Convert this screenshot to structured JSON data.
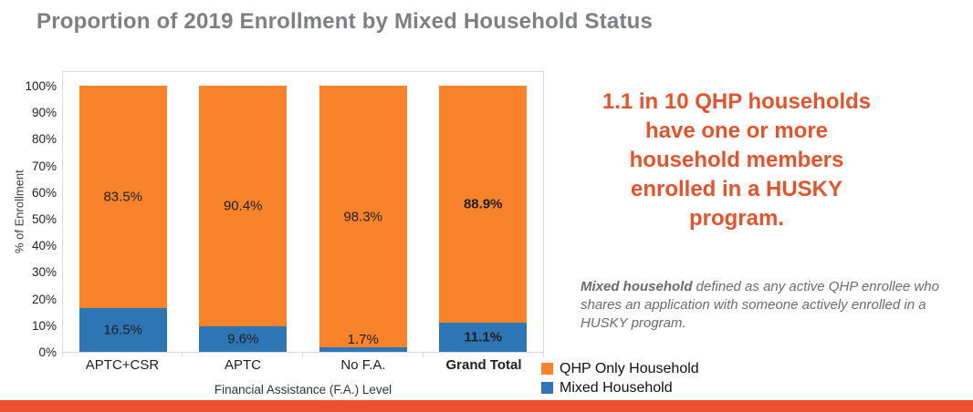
{
  "title": "Proportion of 2019 Enrollment by Mixed Household Status",
  "chart_data": {
    "type": "bar",
    "stacked": true,
    "title": "Proportion of 2019 Enrollment by Mixed Household Status",
    "categories": [
      "APTC+CSR",
      "APTC",
      "No F.A.",
      "Grand Total"
    ],
    "series": [
      {
        "name": "QHP Only Household",
        "color": "#f8832b",
        "values": [
          83.5,
          90.4,
          98.3,
          88.9
        ]
      },
      {
        "name": "Mixed Household",
        "color": "#2e75b6",
        "values": [
          16.5,
          9.6,
          1.7,
          11.1
        ]
      }
    ],
    "data_labels": {
      "QHP Only Household": [
        "83.5%",
        "90.4%",
        "98.3%",
        "88.9%"
      ],
      "Mixed Household": [
        "16.5%",
        "9.6%",
        "1.7%",
        "11.1%"
      ]
    },
    "emphasized_category": "Grand Total",
    "xlabel": "Financial Assistance (F.A.) Level",
    "ylabel": "% of Enrollment",
    "ylim": [
      0,
      100
    ],
    "yticks": [
      "100%",
      "90%",
      "80%",
      "70%",
      "60%",
      "50%",
      "40%",
      "30%",
      "20%",
      "10%",
      "0%"
    ],
    "grid": false,
    "legend_position": "bottom-right"
  },
  "legend": [
    {
      "label": "QHP Only Household",
      "color": "#f8832b"
    },
    {
      "label": "Mixed Household",
      "color": "#2e75b6"
    }
  ],
  "callout": {
    "headline": "1.1 in 10 QHP households\nhave one or more\nhousehold members\nenrolled in a HUSKY\nprogram."
  },
  "note": {
    "bold_lead": "Mixed household",
    "text": " defined as any active QHP enrollee who shares an application with someone actively enrolled in a HUSKY program."
  },
  "colors": {
    "title_gray": "#7e7f82",
    "qhp_orange": "#f8832b",
    "mixed_blue": "#2e75b6",
    "callout_orange": "#e0552d",
    "bottom_strip": "#e8512b",
    "plot_border": "#d9d9d9",
    "note_gray": "#6a6b6d"
  }
}
